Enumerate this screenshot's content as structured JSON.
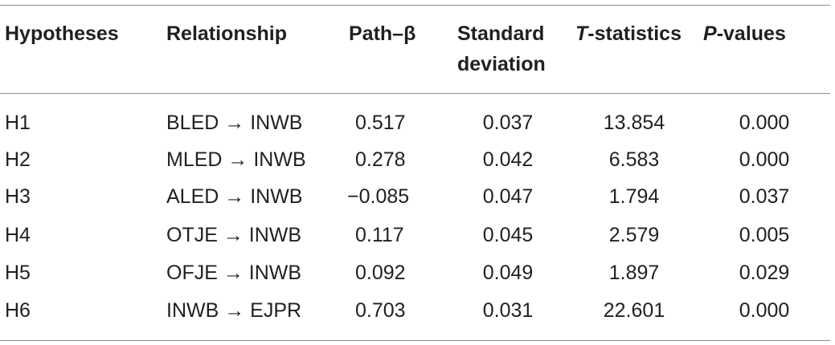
{
  "headers": {
    "hypotheses": "Hypotheses",
    "relationship": "Relationship",
    "path_beta": "Path–β",
    "standard_deviation_line1": "Standard",
    "standard_deviation_line2": "deviation",
    "t_statistics_prefix": "T",
    "t_statistics_suffix": "-statistics",
    "p_values_prefix": "P",
    "p_values_suffix": "-values"
  },
  "rows": [
    {
      "hypothesis": "H1",
      "relationship": "BLED → INWB",
      "path_beta": "0.517",
      "sd": "0.037",
      "t": "13.854",
      "p": "0.000"
    },
    {
      "hypothesis": "H2",
      "relationship": "MLED → INWB",
      "path_beta": "0.278",
      "sd": "0.042",
      "t": "6.583",
      "p": "0.000"
    },
    {
      "hypothesis": "H3",
      "relationship": "ALED → INWB",
      "path_beta": "−0.085",
      "sd": "0.047",
      "t": "1.794",
      "p": "0.037"
    },
    {
      "hypothesis": "H4",
      "relationship": "OTJE → INWB",
      "path_beta": "0.117",
      "sd": "0.045",
      "t": "2.579",
      "p": "0.005"
    },
    {
      "hypothesis": "H5",
      "relationship": "OFJE → INWB",
      "path_beta": "0.092",
      "sd": "0.049",
      "t": "1.897",
      "p": "0.029"
    },
    {
      "hypothesis": "H6",
      "relationship": "INWB → EJPR",
      "path_beta": "0.703",
      "sd": "0.031",
      "t": "22.601",
      "p": "0.000"
    }
  ]
}
